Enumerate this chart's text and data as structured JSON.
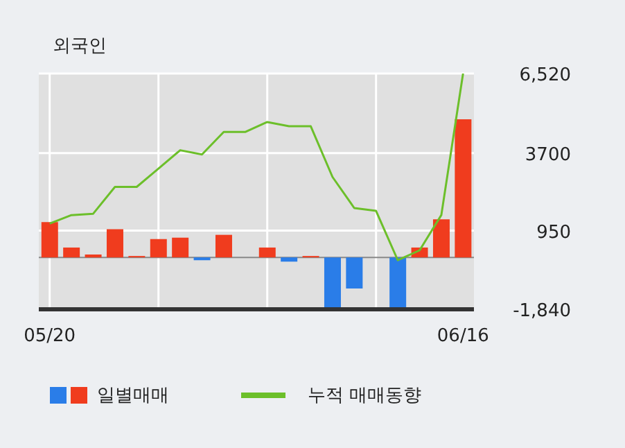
{
  "chart_data": {
    "type": "bar",
    "title": "외국인",
    "categories": [
      "05/20",
      null,
      null,
      null,
      null,
      null,
      null,
      null,
      null,
      null,
      null,
      null,
      null,
      null,
      null,
      null,
      null,
      null,
      null,
      "06/16"
    ],
    "series": [
      {
        "name": "일별매매",
        "values": [
          1250,
          350,
          100,
          1000,
          50,
          650,
          700,
          -100,
          800,
          0,
          350,
          -150,
          50,
          -1800,
          -1100,
          0,
          -1800,
          350,
          1350,
          4900
        ],
        "colors": [
          "#f03c1e",
          "#f03c1e",
          "#f03c1e",
          "#f03c1e",
          "#f03c1e",
          "#f03c1e",
          "#f03c1e",
          "#2a7de8",
          "#f03c1e",
          "#f03c1e",
          "#f03c1e",
          "#2a7de8",
          "#f03c1e",
          "#2a7de8",
          "#2a7de8",
          "#f03c1e",
          "#2a7de8",
          "#f03c1e",
          "#f03c1e",
          "#f03c1e"
        ]
      },
      {
        "name": "누적 매매동향",
        "type": "line",
        "color": "#6cbf2a",
        "values": [
          1200,
          1500,
          1550,
          2500,
          2500,
          3150,
          3800,
          3650,
          4450,
          4450,
          4800,
          4650,
          4650,
          2850,
          1750,
          1650,
          -100,
          250,
          1500,
          6520
        ]
      }
    ],
    "ylim": [
      -1840,
      6520
    ],
    "yticks": [
      {
        "value": -1840,
        "label": "-1,840"
      },
      950,
      3700,
      {
        "value": 6520,
        "label": "6,520"
      }
    ],
    "ref_lines": [
      {
        "axis": "y",
        "value": 0,
        "color": "#888888"
      }
    ],
    "grid": true,
    "legend": "bottom",
    "marker": "none"
  }
}
